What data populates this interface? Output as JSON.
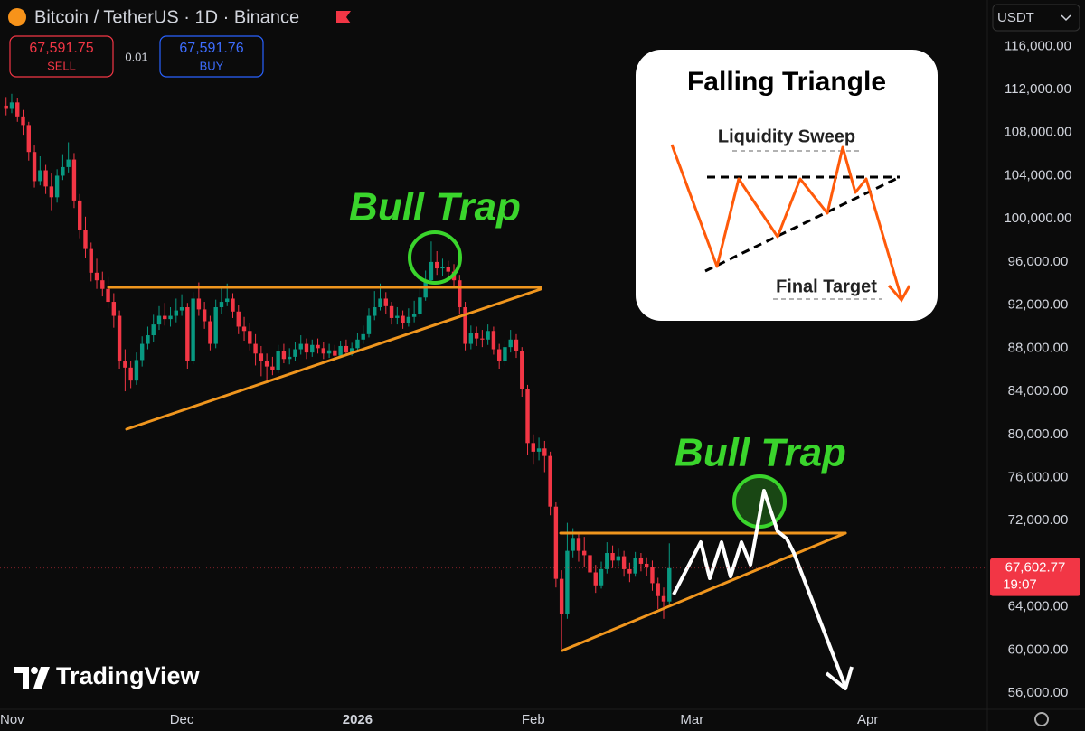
{
  "header": {
    "symbol": "Bitcoin / TetherUS · 1D · Binance",
    "sell_price": "67,591.75",
    "sell_label": "SELL",
    "spread": "0.01",
    "buy_price": "67,591.76",
    "buy_label": "BUY",
    "currency": "USDT"
  },
  "watermark": "TradingView",
  "annotations": {
    "bull_trap_1": "Bull Trap",
    "bull_trap_2": "Bull Trap",
    "inset_title": "Falling Triangle",
    "inset_top": "Liquidity Sweep",
    "inset_bottom": "Final Target"
  },
  "chart_data": {
    "type": "candlestick",
    "categories": [
      null,
      null,
      null,
      null,
      null,
      null,
      null,
      null,
      null,
      null,
      null,
      null,
      null,
      null,
      null,
      null,
      null,
      null,
      null,
      null,
      null,
      null,
      null,
      null,
      null,
      null,
      null,
      null,
      null,
      null,
      null,
      null,
      null,
      null,
      null,
      null,
      null,
      null,
      null,
      null,
      null,
      null,
      null,
      null,
      null,
      null,
      null,
      null,
      null,
      null,
      null,
      null,
      null,
      null,
      null,
      null,
      null,
      null,
      null,
      null,
      null,
      null,
      null,
      null,
      null,
      null,
      null,
      null,
      null,
      null,
      null,
      null,
      null,
      null,
      null,
      null,
      null,
      null,
      null,
      null,
      null,
      null,
      null,
      null,
      null,
      null,
      null,
      null,
      null,
      null,
      null,
      null,
      null,
      null,
      null,
      null,
      null,
      null,
      null,
      null,
      null,
      null,
      null,
      null,
      null,
      null,
      null,
      null,
      null,
      null,
      null,
      null,
      null,
      null,
      null,
      null,
      null,
      null
    ],
    "open": [
      110500,
      110200,
      110800,
      109500,
      108700,
      106200,
      103500,
      104500,
      103000,
      102000,
      104000,
      104800,
      105500,
      101700,
      99000,
      97200,
      95000,
      94300,
      93500,
      92300,
      91000,
      86800,
      86200,
      85000,
      86900,
      88400,
      89200,
      90200,
      91000,
      90700,
      91000,
      91500,
      91800,
      86800,
      92600,
      91600,
      90500,
      88400,
      91800,
      92300,
      92600,
      91400,
      90000,
      89600,
      88400,
      87500,
      86800,
      86300,
      86000,
      87700,
      87000,
      87200,
      87900,
      88400,
      87600,
      88300,
      88000,
      87500,
      87800,
      87300,
      88200,
      87600,
      88000,
      88800,
      89300,
      91000,
      91800,
      92600,
      91900,
      90800,
      91000,
      90300,
      90900,
      91200,
      92700,
      94300,
      96000,
      95400,
      95500,
      95100,
      94300,
      91800,
      88400,
      89400,
      88900,
      88800,
      89600,
      87900,
      86800,
      88100,
      88800,
      87700,
      84200,
      79200,
      78400,
      78700,
      78000,
      73300,
      66600,
      63300,
      69200,
      70400,
      69200,
      68800,
      67200,
      66000,
      67500,
      69000,
      68300,
      68700,
      67500,
      67100,
      68500,
      68000,
      67700,
      66200,
      65000,
      64500
    ],
    "high": [
      111300,
      111600,
      111200,
      110100,
      109000,
      106800,
      105800,
      105000,
      104200,
      104600,
      106000,
      107100,
      106100,
      102300,
      100200,
      97800,
      96300,
      95100,
      94600,
      93100,
      91500,
      87900,
      86800,
      87600,
      89100,
      90000,
      91100,
      91900,
      92200,
      91800,
      92600,
      93000,
      92200,
      93200,
      94100,
      92300,
      91000,
      92500,
      93600,
      94000,
      93100,
      92000,
      90900,
      90300,
      89300,
      88200,
      87500,
      87200,
      88300,
      88400,
      88000,
      88600,
      89200,
      88900,
      88800,
      88900,
      88600,
      88400,
      88300,
      88700,
      88800,
      88500,
      89400,
      90100,
      91700,
      93300,
      94000,
      93200,
      92300,
      91800,
      91500,
      91700,
      92400,
      93600,
      95200,
      97900,
      97000,
      96300,
      96100,
      95800,
      94800,
      92300,
      90100,
      90000,
      89700,
      90200,
      90000,
      88400,
      88700,
      89700,
      89300,
      88100,
      84600,
      80000,
      79700,
      79400,
      78400,
      73700,
      67400,
      71800,
      71300,
      70900,
      70500,
      69300,
      67900,
      68200,
      70000,
      69700,
      69400,
      69200,
      68100,
      69100,
      69000,
      68600,
      68300,
      66700,
      65800,
      69900
    ],
    "low": [
      109600,
      109800,
      109000,
      107800,
      105400,
      102900,
      103100,
      102300,
      100800,
      101500,
      103600,
      104300,
      101000,
      98200,
      96400,
      94200,
      93500,
      92800,
      91700,
      89900,
      86100,
      84000,
      84300,
      84600,
      86300,
      87900,
      88600,
      89700,
      90100,
      90000,
      90400,
      91000,
      86100,
      86500,
      91000,
      89800,
      87800,
      88000,
      91200,
      91900,
      90800,
      89300,
      88700,
      87800,
      86400,
      85400,
      85100,
      85500,
      85700,
      86600,
      86500,
      86800,
      87400,
      87000,
      87200,
      87500,
      87000,
      87100,
      86900,
      87100,
      87300,
      87300,
      87700,
      88400,
      89000,
      90600,
      91500,
      91200,
      90200,
      90200,
      89800,
      90000,
      90400,
      90900,
      92400,
      94000,
      94800,
      94700,
      94300,
      93600,
      91200,
      87800,
      87900,
      88200,
      88100,
      88300,
      87400,
      86100,
      86400,
      87600,
      87100,
      83500,
      78100,
      77200,
      77600,
      76500,
      72500,
      65800,
      60100,
      62900,
      68600,
      68200,
      67700,
      66400,
      65300,
      65700,
      67100,
      67600,
      67800,
      66800,
      66300,
      66800,
      67300,
      66900,
      65500,
      63800,
      62900,
      64300
    ],
    "close": [
      110200,
      110800,
      109500,
      108700,
      106200,
      103500,
      104500,
      103000,
      102000,
      104000,
      104800,
      105500,
      101700,
      99000,
      97200,
      95000,
      94300,
      93500,
      92300,
      91000,
      86800,
      86200,
      85000,
      86900,
      88400,
      89200,
      90200,
      91000,
      90700,
      91000,
      91500,
      91800,
      86800,
      92600,
      91600,
      90500,
      88400,
      91800,
      92300,
      92600,
      91400,
      90000,
      89600,
      88400,
      87500,
      86800,
      86300,
      86000,
      87700,
      87000,
      87200,
      87900,
      88400,
      87600,
      88300,
      88000,
      87500,
      87800,
      87300,
      88200,
      87600,
      88000,
      88800,
      89300,
      91000,
      91800,
      92600,
      91900,
      90800,
      91000,
      90300,
      90900,
      91200,
      92700,
      94300,
      96000,
      95400,
      95500,
      95100,
      94300,
      91800,
      88400,
      89400,
      88900,
      88800,
      89600,
      87900,
      86800,
      88100,
      88800,
      87700,
      84200,
      79200,
      78400,
      78700,
      78000,
      73300,
      66600,
      63300,
      69200,
      70400,
      69200,
      68800,
      67200,
      66000,
      67500,
      69000,
      68300,
      68700,
      67500,
      67100,
      68500,
      68000,
      67700,
      66200,
      65000,
      64500,
      67600
    ],
    "up_color": "#089981",
    "down_color": "#f23645",
    "xlim": [
      -1.07,
      173.1
    ],
    "xticks": [
      {
        "value": 1,
        "label": "Nov"
      },
      {
        "value": 31,
        "label": "Dec"
      },
      {
        "value": 62,
        "label": "2026"
      },
      {
        "value": 93,
        "label": "Feb"
      },
      {
        "value": 121,
        "label": "Mar"
      },
      {
        "value": 152,
        "label": "Apr"
      }
    ],
    "ylim": [
      54500,
      120300
    ],
    "yticks": [
      {
        "value": 116000,
        "label": "116,000.00"
      },
      {
        "value": 112000,
        "label": "112,000.00"
      },
      {
        "value": 108000,
        "label": "108,000.00"
      },
      {
        "value": 104000,
        "label": "104,000.00"
      },
      {
        "value": 100000,
        "label": "100,000.00"
      },
      {
        "value": 96000,
        "label": "96,000.00"
      },
      {
        "value": 92000,
        "label": "92,000.00"
      },
      {
        "value": 88000,
        "label": "88,000.00"
      },
      {
        "value": 84000,
        "label": "84,000.00"
      },
      {
        "value": 80000,
        "label": "80,000.00"
      },
      {
        "value": 76000,
        "label": "76,000.00"
      },
      {
        "value": 72000,
        "label": "72,000.00"
      },
      {
        "value": 68000,
        "label": "68,000.00"
      },
      {
        "value": 64000,
        "label": "64,000.00"
      },
      {
        "value": 60000,
        "label": "60,000.00"
      },
      {
        "value": 56000,
        "label": "56,000.00"
      }
    ],
    "grid": false,
    "last_price": {
      "value": 67602.77,
      "label": "67,602.77"
    },
    "countdown": "19:07"
  }
}
